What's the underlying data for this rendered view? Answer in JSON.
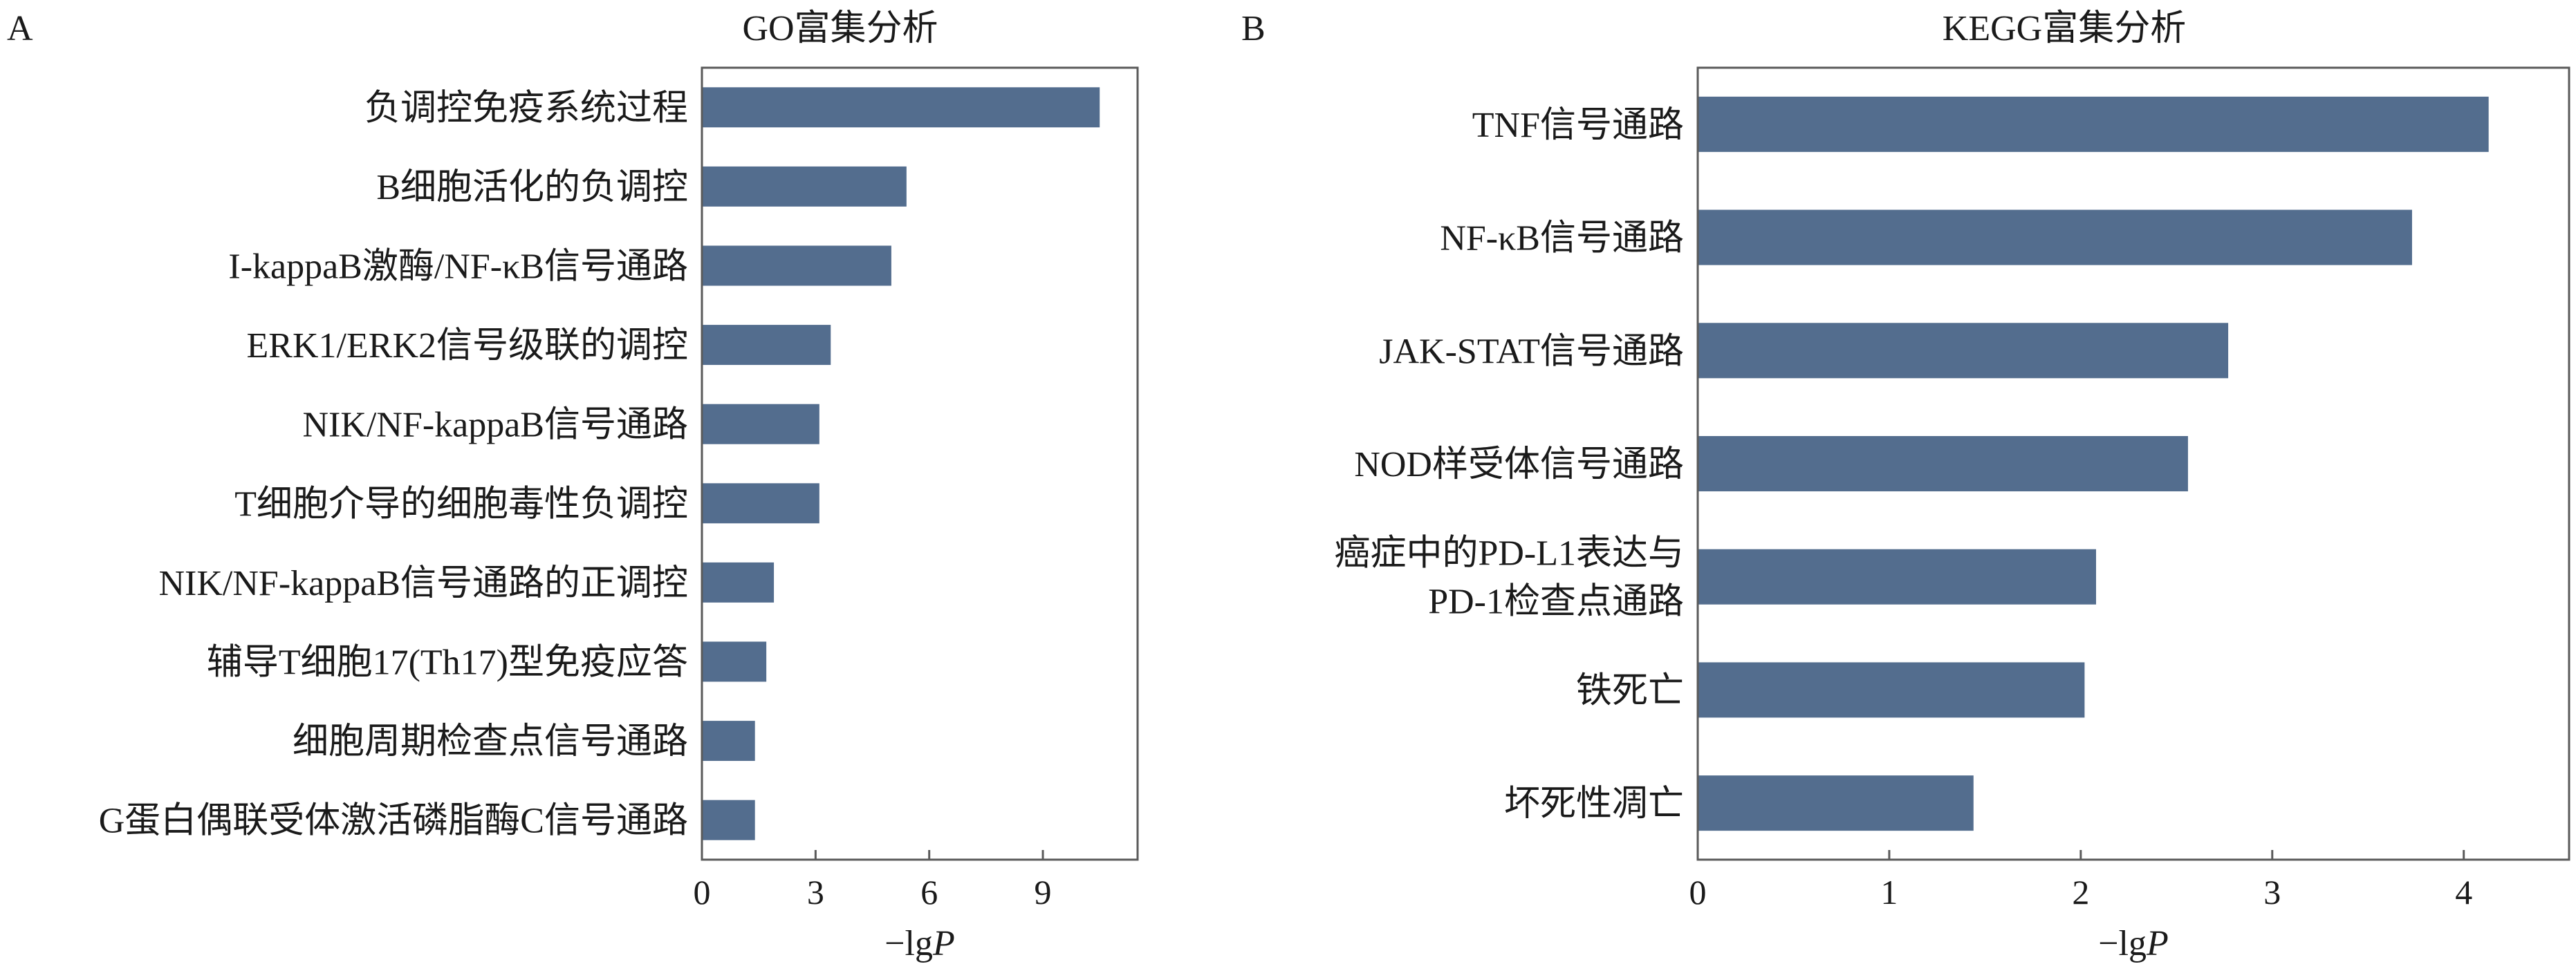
{
  "chart_data": [
    {
      "type": "bar",
      "orientation": "horizontal",
      "panel": "A",
      "title": "GO富集分析",
      "xlabel": "−lgP",
      "xlim": [
        0,
        11.5
      ],
      "xticks": [
        0,
        3,
        6,
        9
      ],
      "categories": [
        "负调控免疫系统过程",
        "B细胞活化的负调控",
        "I-kappaB激酶/NF-κB信号通路",
        "ERK1/ERK2信号级联的调控",
        "NIK/NF-kappaB信号通路",
        "T细胞介导的细胞毒性负调控",
        "NIK/NF-kappaB信号通路的正调控",
        "辅导T细胞17(Th17)型免疫应答",
        "细胞周期检查点信号通路",
        "G蛋白偶联受体激活磷脂酶C信号通路"
      ],
      "values": [
        10.5,
        5.4,
        5.0,
        3.4,
        3.1,
        3.1,
        1.9,
        1.7,
        1.4,
        1.4
      ],
      "bar_color": "#536d8e"
    },
    {
      "type": "bar",
      "orientation": "horizontal",
      "panel": "B",
      "title": "KEGG富集分析",
      "xlabel": "−lgP",
      "xlim": [
        0,
        4.55
      ],
      "xticks": [
        0,
        1,
        2,
        3,
        4
      ],
      "categories": [
        [
          "TNF信号通路"
        ],
        [
          "NF-κB信号通路"
        ],
        [
          "JAK-STAT信号通路"
        ],
        [
          "NOD样受体信号通路"
        ],
        [
          "癌症中的PD-L1表达与",
          "PD-1检查点通路"
        ],
        [
          "铁死亡"
        ],
        [
          "坏死性凋亡"
        ]
      ],
      "values": [
        4.13,
        3.73,
        2.77,
        2.56,
        2.08,
        2.02,
        1.44
      ],
      "bar_color": "#536d8e"
    }
  ]
}
